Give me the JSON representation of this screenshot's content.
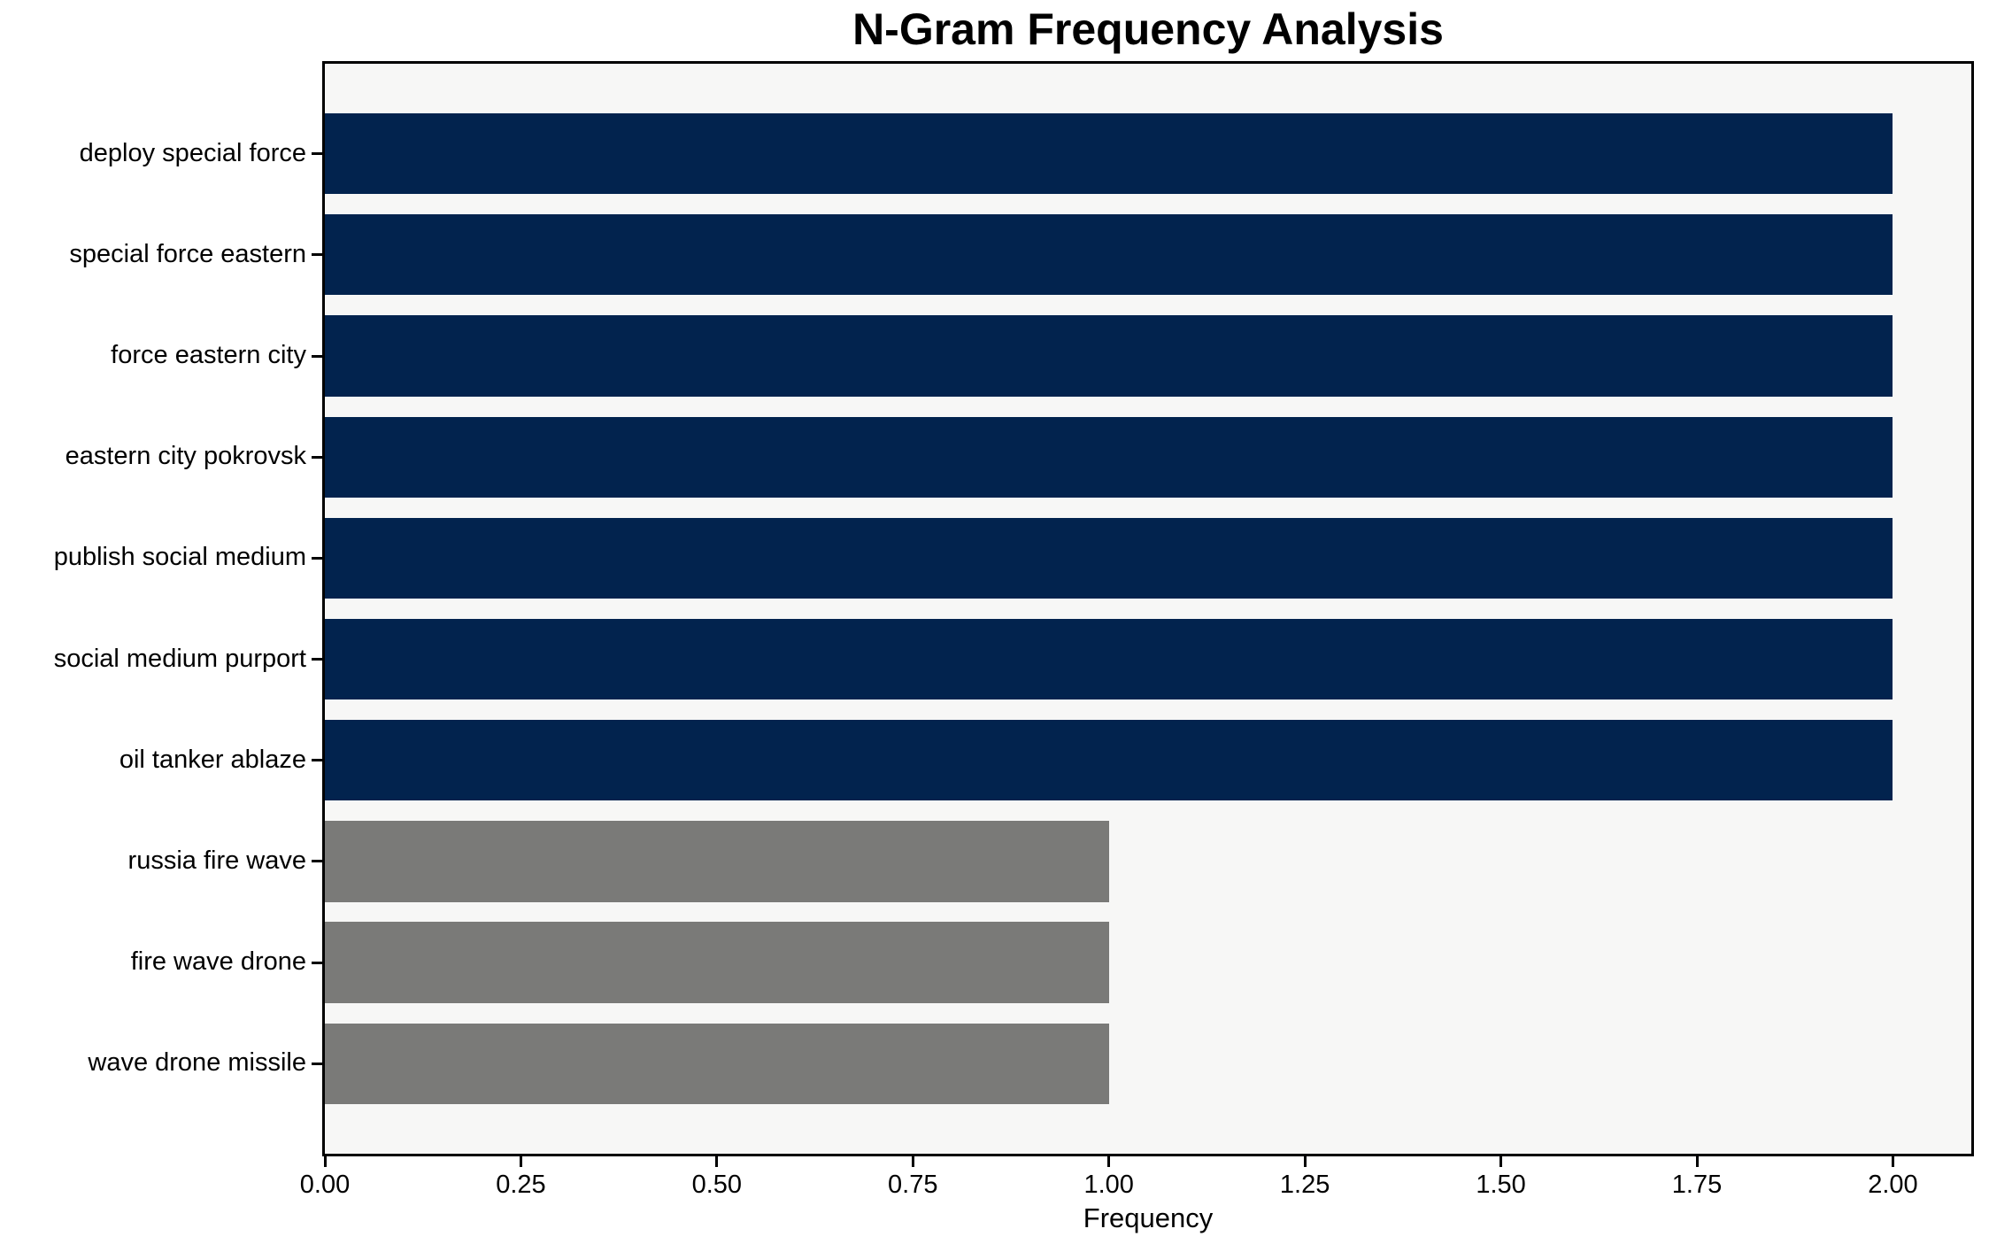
{
  "chart_data": {
    "type": "bar",
    "orientation": "horizontal",
    "title": "N-Gram Frequency Analysis",
    "xlabel": "Frequency",
    "ylabel": "",
    "categories": [
      "deploy special force",
      "special force eastern",
      "force eastern city",
      "eastern city pokrovsk",
      "publish social medium",
      "social medium purport",
      "oil tanker ablaze",
      "russia fire wave",
      "fire wave drone",
      "wave drone missile"
    ],
    "values": [
      2,
      2,
      2,
      2,
      2,
      2,
      2,
      1,
      1,
      1
    ],
    "bar_colors": [
      "#02234e",
      "#02234e",
      "#02234e",
      "#02234e",
      "#02234e",
      "#02234e",
      "#02234e",
      "#7a7a78",
      "#7a7a78",
      "#7a7a78"
    ],
    "xticks": [
      {
        "value": 0.0,
        "label": "0.00"
      },
      {
        "value": 0.25,
        "label": "0.25"
      },
      {
        "value": 0.5,
        "label": "0.50"
      },
      {
        "value": 0.75,
        "label": "0.75"
      },
      {
        "value": 1.0,
        "label": "1.00"
      },
      {
        "value": 1.25,
        "label": "1.25"
      },
      {
        "value": 1.5,
        "label": "1.50"
      },
      {
        "value": 1.75,
        "label": "1.75"
      },
      {
        "value": 2.0,
        "label": "2.00"
      }
    ],
    "xlim": [
      0,
      2.1
    ],
    "grid": false,
    "legend": null,
    "bar_height_fraction": 0.8,
    "plot_background": "#f7f7f6",
    "figure_background": "#ffffff",
    "spine_color": "#000000",
    "text_color": "#000000"
  }
}
